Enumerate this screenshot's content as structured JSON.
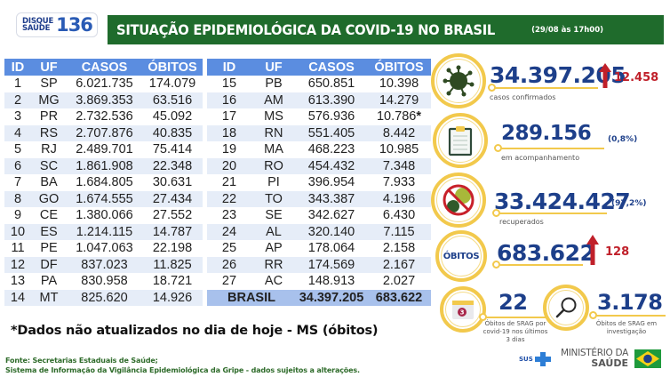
{
  "header": {
    "logo": {
      "line1": "DISQUE",
      "line2": "SAÚDE",
      "number": "136"
    },
    "title": "SITUAÇÃO EPIDEMIOLÓGICA DA COVID-19 NO BRASIL",
    "date": "(29/08 às 17h00)"
  },
  "table": {
    "columns": [
      "ID",
      "UF",
      "CASOS",
      "ÓBITOS"
    ],
    "left_rows": [
      {
        "id": "1",
        "uf": "SP",
        "casos": "6.021.735",
        "obitos": "174.079"
      },
      {
        "id": "2",
        "uf": "MG",
        "casos": "3.869.353",
        "obitos": "63.516"
      },
      {
        "id": "3",
        "uf": "PR",
        "casos": "2.732.536",
        "obitos": "45.092"
      },
      {
        "id": "4",
        "uf": "RS",
        "casos": "2.707.876",
        "obitos": "40.835"
      },
      {
        "id": "5",
        "uf": "RJ",
        "casos": "2.489.701",
        "obitos": "75.414"
      },
      {
        "id": "6",
        "uf": "SC",
        "casos": "1.861.908",
        "obitos": "22.348"
      },
      {
        "id": "7",
        "uf": "BA",
        "casos": "1.684.805",
        "obitos": "30.631"
      },
      {
        "id": "8",
        "uf": "GO",
        "casos": "1.674.555",
        "obitos": "27.434"
      },
      {
        "id": "9",
        "uf": "CE",
        "casos": "1.380.066",
        "obitos": "27.552"
      },
      {
        "id": "10",
        "uf": "ES",
        "casos": "1.214.115",
        "obitos": "14.787"
      },
      {
        "id": "11",
        "uf": "PE",
        "casos": "1.047.063",
        "obitos": "22.198"
      },
      {
        "id": "12",
        "uf": "DF",
        "casos": "837.023",
        "obitos": "11.825"
      },
      {
        "id": "13",
        "uf": "PA",
        "casos": "830.958",
        "obitos": "18.721"
      },
      {
        "id": "14",
        "uf": "MT",
        "casos": "825.620",
        "obitos": "14.926"
      }
    ],
    "right_rows": [
      {
        "id": "15",
        "uf": "PB",
        "casos": "650.851",
        "obitos": "10.398"
      },
      {
        "id": "16",
        "uf": "AM",
        "casos": "613.390",
        "obitos": "14.279"
      },
      {
        "id": "17",
        "uf": "MS",
        "casos": "576.936",
        "obitos": "10.786",
        "mark": "*"
      },
      {
        "id": "18",
        "uf": "RN",
        "casos": "551.405",
        "obitos": "8.442"
      },
      {
        "id": "19",
        "uf": "MA",
        "casos": "468.223",
        "obitos": "10.985"
      },
      {
        "id": "20",
        "uf": "RO",
        "casos": "454.432",
        "obitos": "7.348"
      },
      {
        "id": "21",
        "uf": "PI",
        "casos": "396.954",
        "obitos": "7.933"
      },
      {
        "id": "22",
        "uf": "TO",
        "casos": "343.387",
        "obitos": "4.196"
      },
      {
        "id": "23",
        "uf": "SE",
        "casos": "342.627",
        "obitos": "6.430"
      },
      {
        "id": "24",
        "uf": "AL",
        "casos": "320.140",
        "obitos": "7.115"
      },
      {
        "id": "25",
        "uf": "AP",
        "casos": "178.064",
        "obitos": "2.158"
      },
      {
        "id": "26",
        "uf": "RR",
        "casos": "174.569",
        "obitos": "2.167"
      },
      {
        "id": "27",
        "uf": "AC",
        "casos": "148.913",
        "obitos": "2.027"
      }
    ],
    "total": {
      "label": "BRASIL",
      "casos": "34.397.205",
      "obitos": "683.622"
    }
  },
  "stats": {
    "confirmed": {
      "value": "34.397.205",
      "delta": "12.458",
      "label": "casos confirmados",
      "icon": "virus-icon"
    },
    "monitoring": {
      "value": "289.156",
      "pct": "(0,8%)",
      "label": "em acompanhamento",
      "icon": "clipboard-icon"
    },
    "recovered": {
      "value": "33.424.427",
      "pct": "(97,2%)",
      "label": "recuperados",
      "icon": "no-virus-icon"
    },
    "deaths": {
      "badge": "ÓBITOS",
      "value": "683.622",
      "delta": "128"
    },
    "srag_recent": {
      "value": "22",
      "label_lines": [
        "Óbitos de SRAG por",
        "covid-19 nos últimos",
        "3 dias"
      ],
      "calendar_number": "3",
      "icon": "calendar-icon"
    },
    "srag_investigation": {
      "value": "3.178",
      "label_lines": [
        "Óbitos de SRAG em",
        "investigação"
      ],
      "icon": "magnifier-icon"
    }
  },
  "footnote": "*Dados não atualizados no dia de hoje - MS (óbitos)",
  "source": {
    "line1": "Fonte: Secretarias Estaduais de Saúde;",
    "line2": "Sistema de Informação da Vigilância Epidemiológica da Gripe - dados sujeitos a alterações."
  },
  "footer_logos": {
    "sus": "SUS",
    "ministry_line1": "MINISTÉRIO DA",
    "ministry_line2": "SAÚDE"
  },
  "colors": {
    "title_green": "#1f6b2c",
    "table_header_blue": "#5b8de0",
    "row_alt": "#e6edf8",
    "total_row": "#a8c1ec",
    "stat_blue": "#1d3f8a",
    "ring_yellow": "#f2c94c",
    "delta_red": "#c0202a"
  }
}
